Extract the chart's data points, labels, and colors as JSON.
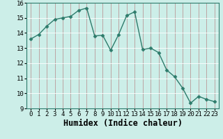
{
  "x": [
    0,
    1,
    2,
    3,
    4,
    5,
    6,
    7,
    8,
    9,
    10,
    11,
    12,
    13,
    14,
    15,
    16,
    17,
    18,
    19,
    20,
    21,
    22,
    23
  ],
  "y": [
    13.6,
    13.9,
    14.45,
    14.9,
    15.0,
    15.1,
    15.5,
    15.65,
    13.8,
    13.85,
    12.85,
    13.9,
    15.15,
    15.4,
    12.9,
    13.0,
    12.7,
    11.55,
    11.1,
    10.35,
    9.35,
    9.8,
    9.6,
    9.45
  ],
  "line_color": "#2d7b6b",
  "marker": "D",
  "markersize": 2.5,
  "linewidth": 1.0,
  "xlabel": "Humidex (Indice chaleur)",
  "xlim": [
    -0.5,
    23.5
  ],
  "ylim": [
    9,
    16
  ],
  "yticks": [
    9,
    10,
    11,
    12,
    13,
    14,
    15,
    16
  ],
  "xticks": [
    0,
    1,
    2,
    3,
    4,
    5,
    6,
    7,
    8,
    9,
    10,
    11,
    12,
    13,
    14,
    15,
    16,
    17,
    18,
    19,
    20,
    21,
    22,
    23
  ],
  "bg_color": "#cceee8",
  "grid_color": "#aaddcc",
  "tick_fontsize": 6.5,
  "xlabel_fontsize": 8.5
}
